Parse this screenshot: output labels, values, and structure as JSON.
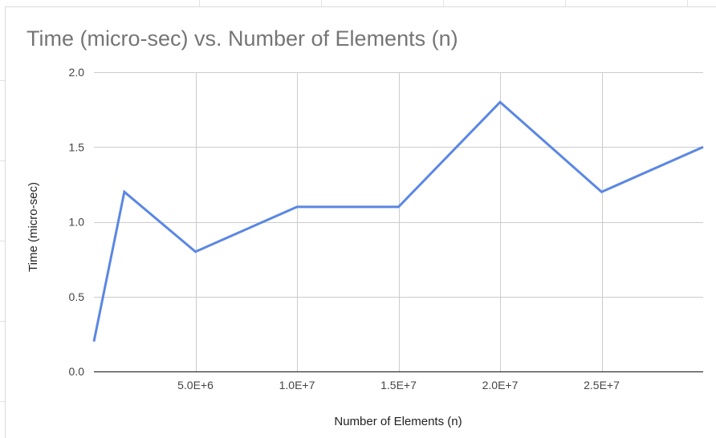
{
  "chart_data": {
    "type": "line",
    "title": "Time (micro-sec) vs. Number of Elements (n)",
    "xlabel": "Number of Elements (n)",
    "ylabel": "Time (micro-sec)",
    "xlim": [
      0,
      30000000
    ],
    "ylim": [
      0,
      2.0
    ],
    "x_ticks": [
      5000000,
      10000000,
      15000000,
      20000000,
      25000000
    ],
    "x_tick_labels": [
      "5.0E+6",
      "1.0E+7",
      "1.5E+7",
      "2.0E+7",
      "2.5E+7"
    ],
    "y_ticks": [
      0,
      0.5,
      1.0,
      1.5,
      2.0
    ],
    "y_tick_labels": [
      "0.0",
      "0.5",
      "1.0",
      "1.5",
      "2.0"
    ],
    "grid": true,
    "legend": "none",
    "series": [
      {
        "color": "#5b87e3",
        "x": [
          0,
          1500000,
          5000000,
          10000000,
          15000000,
          20000000,
          25000000,
          30000000
        ],
        "y": [
          0.2,
          1.2,
          0.8,
          1.1,
          1.1,
          1.8,
          1.2,
          1.5
        ]
      }
    ]
  }
}
